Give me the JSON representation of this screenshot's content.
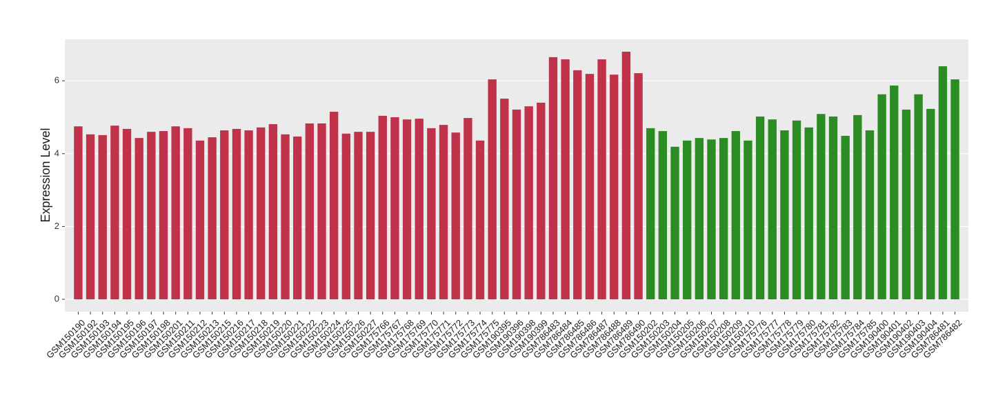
{
  "chart_data": {
    "type": "bar",
    "y_label": "Expression Level",
    "categories": [
      "GSM150190",
      "GSM150192",
      "GSM150193",
      "GSM150194",
      "GSM150195",
      "GSM150196",
      "GSM150197",
      "GSM150198",
      "GSM150201",
      "GSM150211",
      "GSM150212",
      "GSM150213",
      "GSM150215",
      "GSM150216",
      "GSM150217",
      "GSM150218",
      "GSM150219",
      "GSM150220",
      "GSM150221",
      "GSM150222",
      "GSM150223",
      "GSM150224",
      "GSM150225",
      "GSM150226",
      "GSM150227",
      "GSM175766",
      "GSM175767",
      "GSM175768",
      "GSM175769",
      "GSM175770",
      "GSM175771",
      "GSM175772",
      "GSM175773",
      "GSM175774",
      "GSM175775",
      "GSM190395",
      "GSM190396",
      "GSM190398",
      "GSM190399",
      "GSM786483",
      "GSM786484",
      "GSM786485",
      "GSM786486",
      "GSM786487",
      "GSM786488",
      "GSM786489",
      "GSM786490",
      "GSM150202",
      "GSM150203",
      "GSM150204",
      "GSM150205",
      "GSM150206",
      "GSM150207",
      "GSM150208",
      "GSM150209",
      "GSM150210",
      "GSM175776",
      "GSM175777",
      "GSM175778",
      "GSM175779",
      "GSM175780",
      "GSM175781",
      "GSM175782",
      "GSM175783",
      "GSM175784",
      "GSM175785",
      "GSM190400",
      "GSM190401",
      "GSM190402",
      "GSM190403",
      "GSM190404",
      "GSM786481",
      "GSM786482"
    ],
    "values": [
      4.75,
      4.53,
      4.51,
      4.77,
      4.68,
      4.43,
      4.6,
      4.62,
      4.75,
      4.7,
      4.36,
      4.45,
      4.64,
      4.68,
      4.64,
      4.72,
      4.81,
      4.53,
      4.47,
      4.83,
      4.83,
      5.15,
      4.55,
      4.6,
      4.6,
      5.04,
      5.0,
      4.94,
      4.96,
      4.7,
      4.79,
      4.58,
      4.98,
      4.36,
      6.04,
      5.51,
      5.21,
      5.3,
      5.4,
      6.65,
      6.59,
      6.29,
      6.19,
      6.59,
      6.17,
      6.8,
      6.21,
      4.7,
      4.62,
      4.19,
      4.36,
      4.43,
      4.39,
      4.43,
      4.62,
      4.36,
      5.02,
      4.94,
      4.64,
      4.91,
      4.72,
      5.09,
      5.02,
      4.49,
      5.06,
      4.64,
      5.63,
      5.87,
      5.21,
      5.63,
      5.23,
      6.4,
      6.04
    ],
    "colors": [
      "#c0324a",
      "#c0324a",
      "#c0324a",
      "#c0324a",
      "#c0324a",
      "#c0324a",
      "#c0324a",
      "#c0324a",
      "#c0324a",
      "#c0324a",
      "#c0324a",
      "#c0324a",
      "#c0324a",
      "#c0324a",
      "#c0324a",
      "#c0324a",
      "#c0324a",
      "#c0324a",
      "#c0324a",
      "#c0324a",
      "#c0324a",
      "#c0324a",
      "#c0324a",
      "#c0324a",
      "#c0324a",
      "#c0324a",
      "#c0324a",
      "#c0324a",
      "#c0324a",
      "#c0324a",
      "#c0324a",
      "#c0324a",
      "#c0324a",
      "#c0324a",
      "#c0324a",
      "#c0324a",
      "#c0324a",
      "#c0324a",
      "#c0324a",
      "#c0324a",
      "#c0324a",
      "#c0324a",
      "#c0324a",
      "#c0324a",
      "#c0324a",
      "#c0324a",
      "#c0324a",
      "#2a8c22",
      "#2a8c22",
      "#2a8c22",
      "#2a8c22",
      "#2a8c22",
      "#2a8c22",
      "#2a8c22",
      "#2a8c22",
      "#2a8c22",
      "#2a8c22",
      "#2a8c22",
      "#2a8c22",
      "#2a8c22",
      "#2a8c22",
      "#2a8c22",
      "#2a8c22",
      "#2a8c22",
      "#2a8c22",
      "#2a8c22",
      "#2a8c22",
      "#2a8c22",
      "#2a8c22",
      "#2a8c22",
      "#2a8c22",
      "#2a8c22",
      "#2a8c22"
    ],
    "ylim": [
      -0.34,
      7.14
    ],
    "yticks": [
      0,
      2,
      4,
      6
    ],
    "grid": true
  }
}
